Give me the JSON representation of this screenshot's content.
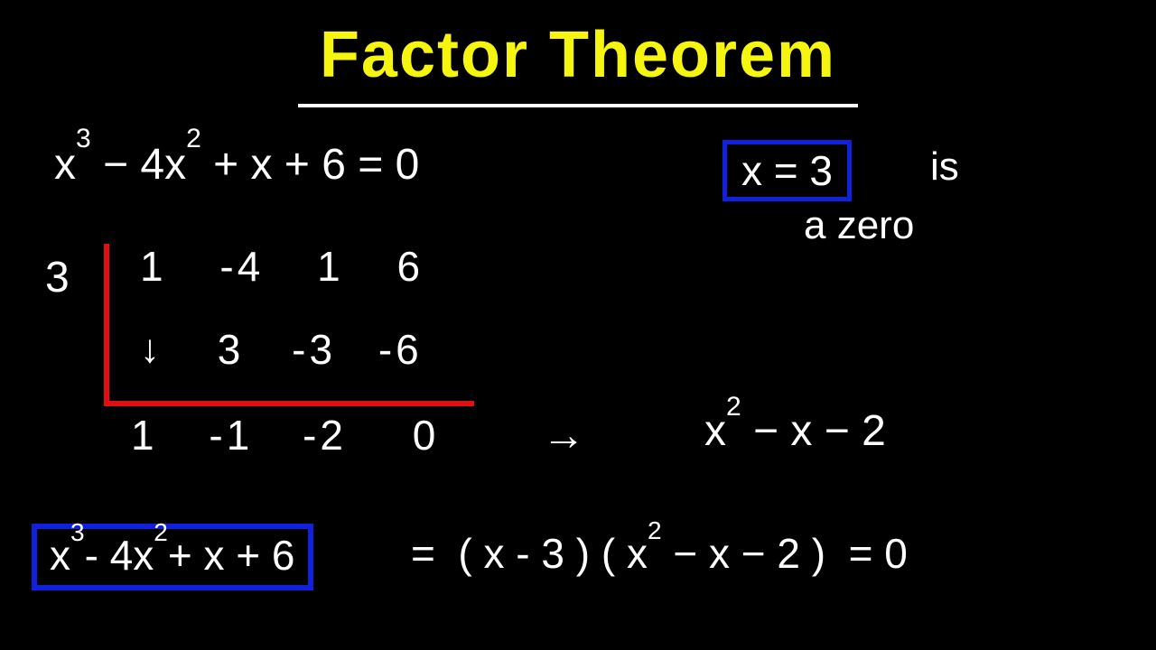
{
  "colors": {
    "background": "#000000",
    "title": "#f5f510",
    "text": "#ffffff",
    "highlight_box": "#1020dd",
    "division_bracket": "#e01010",
    "underline": "#ffffff"
  },
  "title": "Factor Theorem",
  "title_fontsize": 72,
  "base_fontsize": 48,
  "font_family": "Comic Sans MS",
  "equation": "x³ − 4x² + x + 6 = 0",
  "zero_statement": {
    "boxed": "x = 3",
    "rest_line1": "is",
    "rest_line2": "a  zero"
  },
  "synthetic_division": {
    "divisor": "3",
    "row1": [
      "1",
      "-4",
      "1",
      "6"
    ],
    "row2_arrow": "↓",
    "row2": [
      "3",
      "-3",
      "-6"
    ],
    "row3": [
      "1",
      "-1",
      "-2",
      "0"
    ],
    "bracket_color": "#e01010"
  },
  "arrow": "→",
  "quotient": "x² − x − 2",
  "result": {
    "boxed": "x³ - 4x² + x + 6",
    "rest": " =  ( x - 3 ) ( x² − x − 2 )  = 0"
  }
}
